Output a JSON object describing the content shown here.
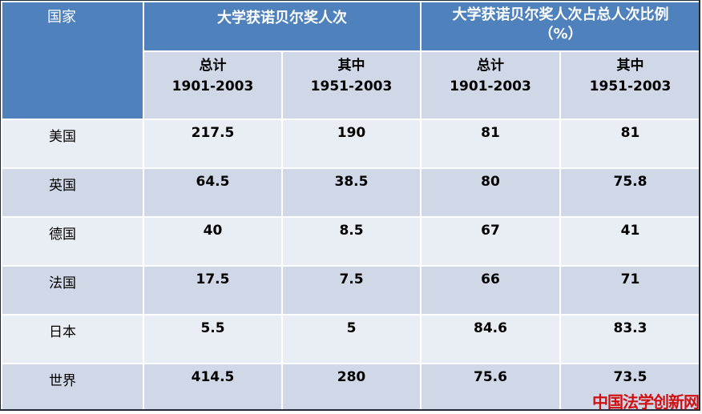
{
  "table": {
    "country_header": "国家",
    "group1_header": "大学获诺贝尔奖人次",
    "group2_header_line1": "大学获诺贝尔奖人次占总人次比例",
    "group2_header_line2": "（%）",
    "sub_headers": [
      {
        "line1": "总计",
        "line2": "1901-2003"
      },
      {
        "line1": "其中",
        "line2": "1951-2003"
      },
      {
        "line1": "总计",
        "line2": "1901-2003"
      },
      {
        "line1": "其中",
        "line2": "1951-2003"
      }
    ],
    "rows": [
      {
        "country": "美国",
        "v1": "217.5",
        "v2": "190",
        "v3": "81",
        "v4": "81"
      },
      {
        "country": "英国",
        "v1": "64.5",
        "v2": "38.5",
        "v3": "80",
        "v4": "75.8"
      },
      {
        "country": "德国",
        "v1": "40",
        "v2": "8.5",
        "v3": "67",
        "v4": "41"
      },
      {
        "country": "法国",
        "v1": "17.5",
        "v2": "7.5",
        "v3": "66",
        "v4": "71"
      },
      {
        "country": "日本",
        "v1": "5.5",
        "v2": "5",
        "v3": "84.6",
        "v4": "83.3"
      },
      {
        "country": "世界",
        "v1": "414.5",
        "v2": "280",
        "v3": "75.6",
        "v4": "73.5"
      }
    ]
  },
  "watermark": "中国法学创新网",
  "colors": {
    "header_blue": "#4f81bd",
    "row_light": "#e9edf4",
    "row_dark": "#d0d8e8",
    "watermark_red": "#d01010"
  }
}
